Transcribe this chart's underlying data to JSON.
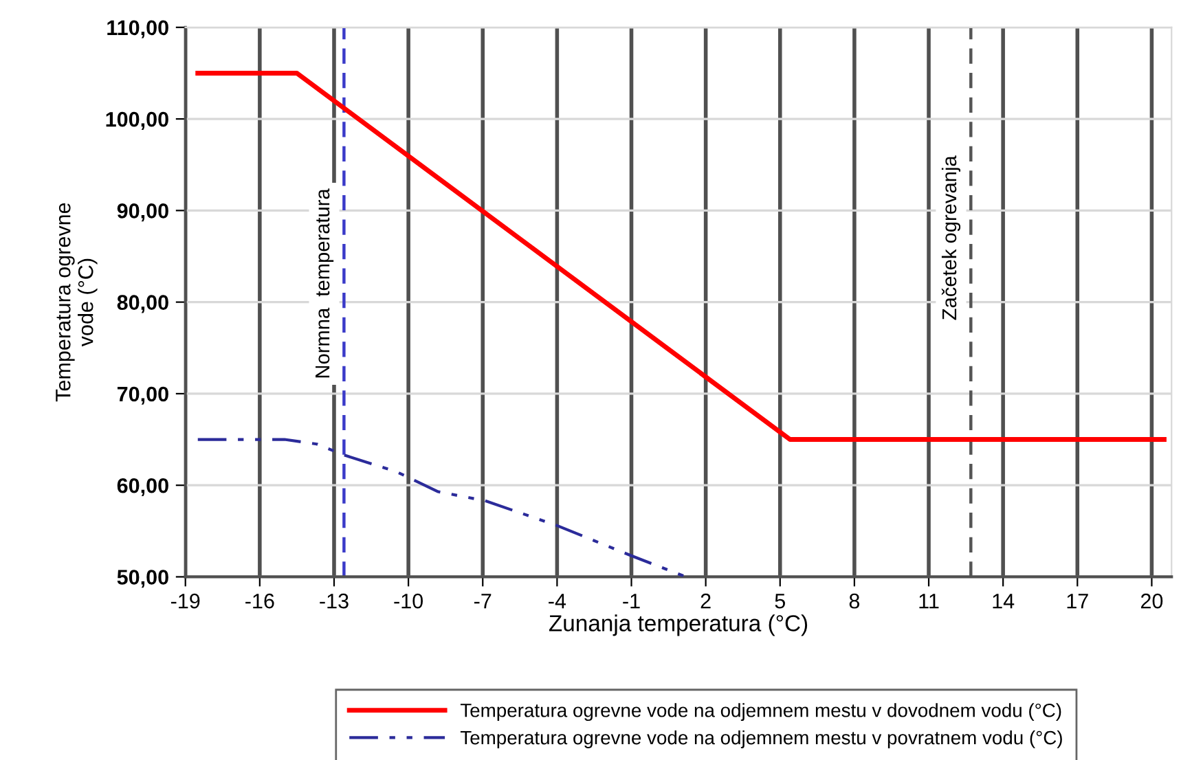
{
  "chart_data": {
    "type": "line",
    "xlabel": "Zunanja temperatura (°C)",
    "ylabel": "Temperatura ogrevne\nvode (°C)",
    "xlim": [
      -19,
      20.8
    ],
    "xticks": [
      -19,
      -16,
      -13,
      -10,
      -7,
      -4,
      -1,
      2,
      5,
      8,
      11,
      14,
      17,
      20
    ],
    "ylim": [
      50,
      110
    ],
    "yticks": [
      {
        "value": 50,
        "label": "50,00"
      },
      {
        "value": 60,
        "label": "60,00"
      },
      {
        "value": 70,
        "label": "70,00"
      },
      {
        "value": 80,
        "label": "80,00"
      },
      {
        "value": 90,
        "label": "90,00"
      },
      {
        "value": 100,
        "label": "100,00"
      },
      {
        "value": 110,
        "label": "110,00"
      }
    ],
    "series": [
      {
        "name": "Temperatura ogrevne vode na odjemnem mestu v dovodnem vodu (°C)",
        "color": "#ff0000",
        "line_style": "solid",
        "x": [
          -18.5,
          -14.5,
          5.4,
          20.5
        ],
        "values": [
          105,
          105,
          65,
          65
        ]
      },
      {
        "name": "Temperatura ogrevne vode na odjemnem mestu v povratnem vodu (°C)",
        "color": "#2b2b9a",
        "line_style": "dashed",
        "x": [
          -18.5,
          -15,
          -13.7,
          -12.6,
          -10.5,
          -8.8,
          -6.9,
          -4,
          -1,
          1.2
        ],
        "values": [
          65,
          65,
          64.5,
          63.3,
          61.5,
          59.3,
          58.3,
          55.6,
          52.3,
          50
        ]
      }
    ],
    "ref_lines": [
      {
        "axis": "x",
        "value": -12.6,
        "label": "Normna  temperatura",
        "color": "#3a3ac8",
        "line_style": "dashed"
      },
      {
        "axis": "x",
        "value": 12.7,
        "label": "Začetek ogrevanja",
        "color": "#555555",
        "line_style": "dashed"
      }
    ],
    "grid": true,
    "legend": "bottom"
  }
}
